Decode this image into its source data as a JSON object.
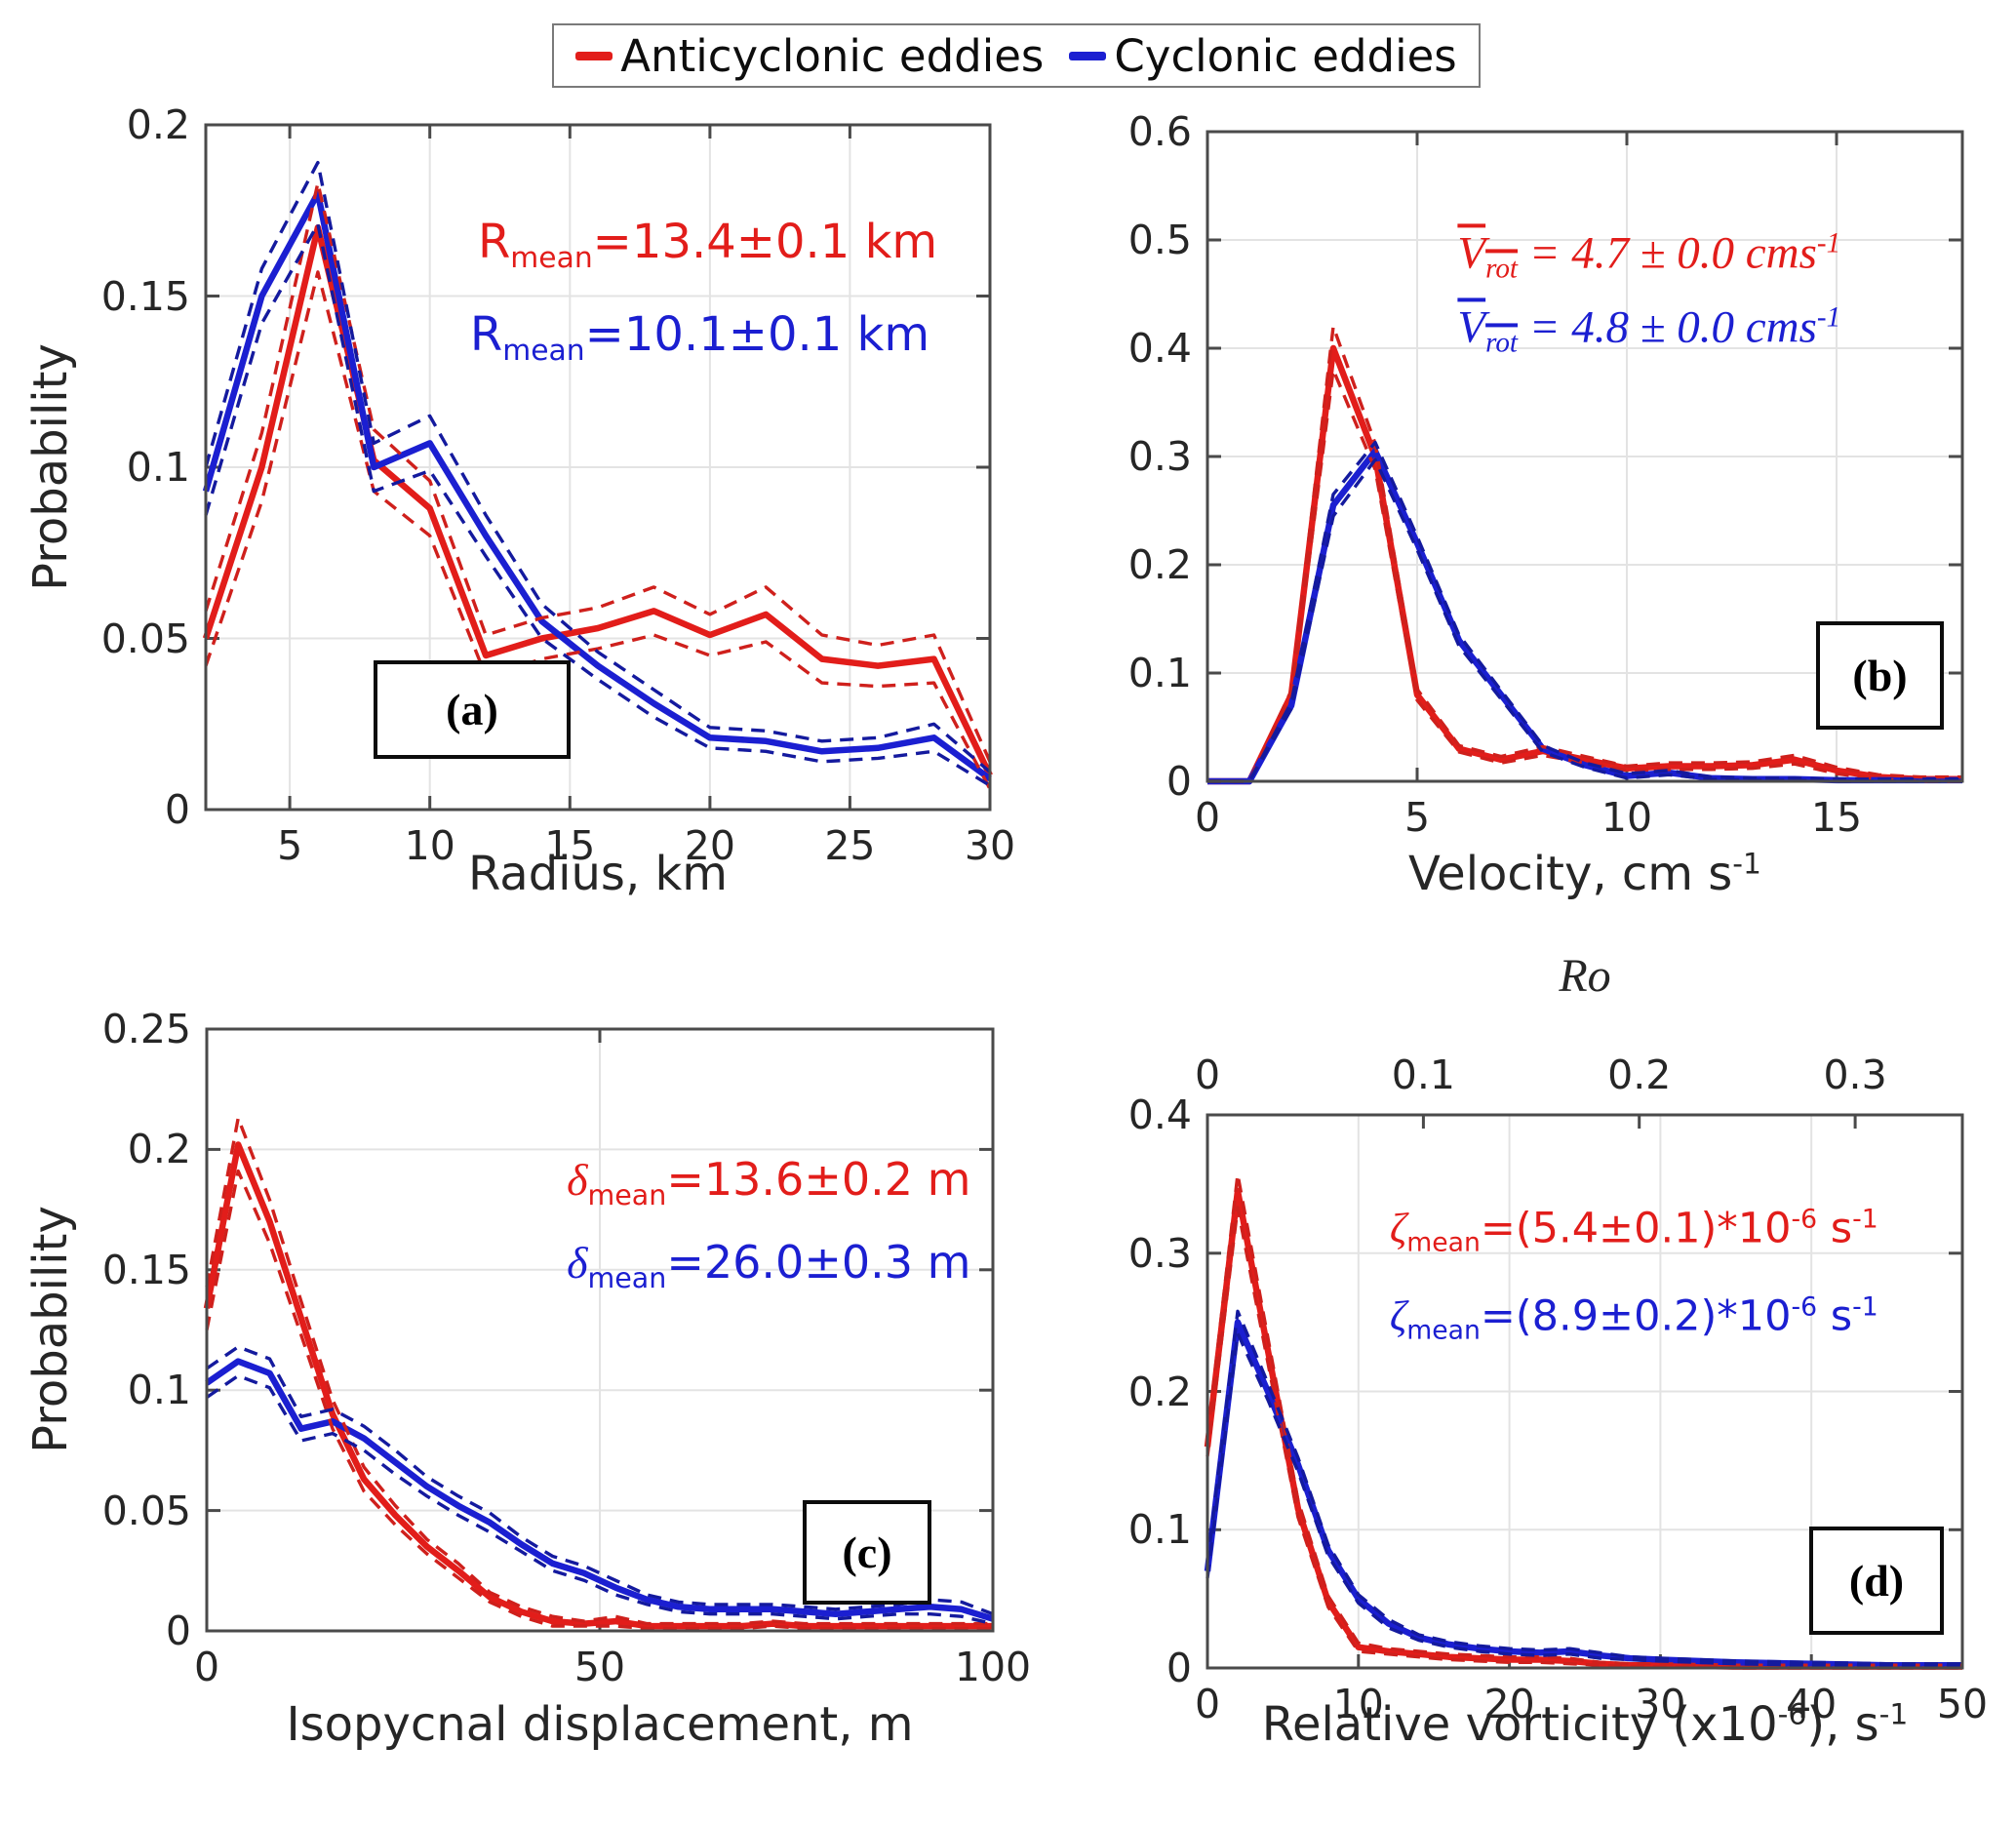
{
  "colors": {
    "red": "#e21d1a",
    "red_dash": "#cf201c",
    "blue": "#1b1fd1",
    "blue_dash": "#141a9e",
    "grid": "#e3e3e3",
    "axis": "#4a4a4a",
    "text": "#262626"
  },
  "legend": {
    "items": [
      {
        "label": "Anticyclonic eddies",
        "color": "#e21d1a"
      },
      {
        "label": "Cyclonic eddies",
        "color": "#1b1fd1"
      }
    ]
  },
  "chart_data": [
    {
      "id": "a",
      "panel_label": "(a)",
      "type": "line",
      "ylabel": "Probability",
      "xlabel_parts": [
        {
          "t": "Radius, km"
        }
      ],
      "xlim": [
        2,
        30
      ],
      "ylim": [
        0,
        0.2
      ],
      "xticks": [
        5,
        10,
        15,
        20,
        25,
        30
      ],
      "xtick_labels": [
        "5",
        "10",
        "15",
        "20",
        "25",
        "30"
      ],
      "yticks": [
        0,
        0.05,
        0.1,
        0.15,
        0.2
      ],
      "ytick_labels": [
        "0",
        "0.05",
        "0.1",
        "0.15",
        "0.2"
      ],
      "x": [
        2,
        4,
        6,
        8,
        10,
        12,
        14,
        16,
        18,
        20,
        22,
        24,
        26,
        28,
        30
      ],
      "series": [
        {
          "name": "Anticyclonic eddies",
          "color_key": "red",
          "values": [
            0.05,
            0.1,
            0.17,
            0.102,
            0.088,
            0.045,
            0.05,
            0.053,
            0.058,
            0.051,
            0.057,
            0.044,
            0.042,
            0.044,
            0.01
          ],
          "ci": [
            0.008,
            0.01,
            0.013,
            0.009,
            0.008,
            0.006,
            0.006,
            0.006,
            0.007,
            0.006,
            0.008,
            0.007,
            0.006,
            0.007,
            0.004
          ]
        },
        {
          "name": "Cyclonic eddies",
          "color_key": "blue",
          "values": [
            0.093,
            0.15,
            0.18,
            0.1,
            0.107,
            0.08,
            0.055,
            0.042,
            0.031,
            0.021,
            0.02,
            0.017,
            0.018,
            0.021,
            0.009
          ],
          "ci": [
            0.007,
            0.008,
            0.009,
            0.007,
            0.008,
            0.006,
            0.005,
            0.004,
            0.004,
            0.003,
            0.003,
            0.003,
            0.003,
            0.004,
            0.002
          ]
        }
      ],
      "annotations": [
        {
          "color": "red",
          "parts": [
            {
              "t": "R"
            },
            {
              "t": "mean",
              "s": "sub"
            },
            {
              "t": "=13.4±0.1 km"
            }
          ]
        },
        {
          "color": "blue",
          "parts": [
            {
              "t": "R"
            },
            {
              "t": "mean",
              "s": "sub"
            },
            {
              "t": "=10.1±0.1 km"
            }
          ]
        }
      ]
    },
    {
      "id": "b",
      "panel_label": "(b)",
      "type": "line",
      "ylabel": "",
      "xlabel_parts": [
        {
          "t": "Velocity, cm s"
        },
        {
          "t": "-1",
          "s": "sup"
        }
      ],
      "xlim": [
        0,
        18
      ],
      "ylim": [
        0,
        0.6
      ],
      "xticks": [
        0,
        5,
        10,
        15
      ],
      "xtick_labels": [
        "0",
        "5",
        "10",
        "15"
      ],
      "yticks": [
        0,
        0.1,
        0.2,
        0.3,
        0.4,
        0.5,
        0.6
      ],
      "ytick_labels": [
        "0",
        "0.1",
        "0.2",
        "0.3",
        "0.4",
        "0.5",
        "0.6"
      ],
      "x": [
        0,
        1,
        2,
        3,
        4,
        5,
        6,
        7,
        8,
        9,
        10,
        11,
        12,
        13,
        14,
        15,
        16,
        17,
        18
      ],
      "series": [
        {
          "name": "Anticyclonic eddies",
          "color_key": "red",
          "values": [
            0,
            0,
            0.08,
            0.4,
            0.3,
            0.08,
            0.03,
            0.02,
            0.028,
            0.02,
            0.012,
            0.014,
            0.014,
            0.015,
            0.02,
            0.01,
            0.004,
            0.002,
            0.002
          ],
          "ci": [
            0,
            0,
            0.004,
            0.02,
            0.012,
            0.005,
            0.003,
            0.003,
            0.004,
            0.003,
            0.002,
            0.003,
            0.003,
            0.003,
            0.004,
            0.003,
            0.002,
            0.002,
            0.002
          ]
        },
        {
          "name": "Cyclonic eddies",
          "color_key": "blue",
          "values": [
            0,
            0,
            0.07,
            0.255,
            0.305,
            0.22,
            0.13,
            0.08,
            0.03,
            0.015,
            0.005,
            0.008,
            0.003,
            0.002,
            0.002,
            0.001,
            0.001,
            0.001,
            0.001
          ],
          "ci": [
            0,
            0,
            0.003,
            0.01,
            0.008,
            0.006,
            0.005,
            0.004,
            0.003,
            0.002,
            0.002,
            0.002,
            0.001,
            0.001,
            0.001,
            0.001,
            0.001,
            0.001,
            0.001
          ]
        }
      ],
      "annotations": [
        {
          "color": "red",
          "parts": [
            {
              "s": "math ov",
              "parts": [
                {
                  "t": "V"
                },
                {
                  "t": "rot",
                  "s": "sub"
                }
              ]
            },
            {
              "t": " = 4.7 ± 0.0 ",
              "s": "math"
            },
            {
              "t": "cms",
              "s": "math"
            },
            {
              "t": "-1",
              "s": "sup math"
            }
          ]
        },
        {
          "color": "blue",
          "parts": [
            {
              "s": "math ov",
              "parts": [
                {
                  "t": "V"
                },
                {
                  "t": "rot",
                  "s": "sub"
                }
              ]
            },
            {
              "t": " = 4.8 ± 0.0 ",
              "s": "math"
            },
            {
              "t": "cms",
              "s": "math"
            },
            {
              "t": "-1",
              "s": "sup math"
            }
          ]
        }
      ]
    },
    {
      "id": "c",
      "panel_label": "(c)",
      "type": "line",
      "ylabel": "Probability",
      "xlabel_parts": [
        {
          "t": "Isopycnal displacement, m"
        }
      ],
      "xlim": [
        0,
        100
      ],
      "ylim": [
        0,
        0.25
      ],
      "xticks": [
        0,
        50,
        100
      ],
      "xtick_labels": [
        "0",
        "50",
        "100"
      ],
      "yticks": [
        0,
        0.05,
        0.1,
        0.15,
        0.2,
        0.25
      ],
      "ytick_labels": [
        "0",
        "0.05",
        "0.1",
        "0.15",
        "0.2",
        "0.25"
      ],
      "x": [
        0,
        4,
        8,
        12,
        16,
        20,
        24,
        28,
        32,
        36,
        40,
        44,
        48,
        52,
        56,
        60,
        64,
        68,
        72,
        76,
        80,
        84,
        88,
        92,
        96,
        100
      ],
      "series": [
        {
          "name": "Anticyclonic eddies",
          "color_key": "red",
          "values": [
            0.134,
            0.202,
            0.17,
            0.13,
            0.09,
            0.063,
            0.048,
            0.035,
            0.025,
            0.014,
            0.008,
            0.004,
            0.003,
            0.004,
            0.002,
            0.002,
            0.002,
            0.002,
            0.003,
            0.002,
            0.002,
            0.002,
            0.002,
            0.002,
            0.002,
            0.002
          ],
          "ci": [
            0.009,
            0.011,
            0.009,
            0.007,
            0.006,
            0.005,
            0.004,
            0.003,
            0.003,
            0.002,
            0.002,
            0.002,
            0.001,
            0.002,
            0.001,
            0.001,
            0.001,
            0.001,
            0.001,
            0.001,
            0.001,
            0.001,
            0.001,
            0.001,
            0.001,
            0.001
          ]
        },
        {
          "name": "Cyclonic eddies",
          "color_key": "blue",
          "values": [
            0.103,
            0.112,
            0.107,
            0.084,
            0.087,
            0.08,
            0.07,
            0.06,
            0.052,
            0.045,
            0.036,
            0.028,
            0.024,
            0.018,
            0.013,
            0.01,
            0.009,
            0.009,
            0.009,
            0.008,
            0.007,
            0.008,
            0.009,
            0.01,
            0.009,
            0.005
          ],
          "ci": [
            0.006,
            0.006,
            0.006,
            0.005,
            0.005,
            0.005,
            0.005,
            0.004,
            0.004,
            0.004,
            0.003,
            0.003,
            0.003,
            0.003,
            0.002,
            0.002,
            0.002,
            0.002,
            0.002,
            0.002,
            0.002,
            0.002,
            0.002,
            0.003,
            0.003,
            0.002
          ]
        }
      ],
      "annotations": [
        {
          "color": "red",
          "parts": [
            {
              "t": "δ",
              "s": "math"
            },
            {
              "t": "mean",
              "s": "sub"
            },
            {
              "t": "=13.6±0.2 m"
            }
          ]
        },
        {
          "color": "blue",
          "parts": [
            {
              "t": "δ",
              "s": "math"
            },
            {
              "t": "mean",
              "s": "sub"
            },
            {
              "t": "=26.0±0.3 m"
            }
          ]
        }
      ]
    },
    {
      "id": "d",
      "panel_label": "(d)",
      "type": "line",
      "ylabel": "",
      "xlabel_parts": [
        {
          "t": "Relative vorticity (x10"
        },
        {
          "t": "-6",
          "s": "sup"
        },
        {
          "t": "), s"
        },
        {
          "t": "-1",
          "s": "sup"
        }
      ],
      "top_axis": {
        "label": "Ro",
        "tick_pos": [
          0,
          14.3,
          28.6,
          42.9
        ],
        "tick_labels": [
          "0",
          "0.1",
          "0.2",
          "0.3"
        ]
      },
      "xlim": [
        0,
        50
      ],
      "ylim": [
        0,
        0.4
      ],
      "xticks": [
        10,
        20,
        30,
        40,
        50
      ],
      "xtick_labels": [
        "10",
        "20",
        "30",
        "40",
        "50"
      ],
      "xticks_extra_label_at_zero": "0",
      "yticks": [
        0,
        0.1,
        0.2,
        0.3,
        0.4
      ],
      "ytick_labels": [
        "0",
        "0.1",
        "0.2",
        "0.3",
        "0.4"
      ],
      "x": [
        0,
        2,
        4,
        6,
        8,
        10,
        12,
        14,
        16,
        18,
        20,
        22,
        24,
        26,
        28,
        30,
        35,
        40,
        45,
        50
      ],
      "series": [
        {
          "name": "Anticyclonic eddies",
          "color_key": "red",
          "values": [
            0.16,
            0.345,
            0.23,
            0.115,
            0.048,
            0.015,
            0.012,
            0.01,
            0.008,
            0.007,
            0.006,
            0.006,
            0.005,
            0.003,
            0.002,
            0.002,
            0.001,
            0.001,
            0.001,
            0.001
          ],
          "ci": [
            0.007,
            0.012,
            0.009,
            0.006,
            0.004,
            0.003,
            0.002,
            0.002,
            0.002,
            0.002,
            0.002,
            0.002,
            0.002,
            0.001,
            0.001,
            0.001,
            0.001,
            0.001,
            0.001,
            0.001
          ]
        },
        {
          "name": "Cyclonic eddies",
          "color_key": "blue",
          "values": [
            0.07,
            0.25,
            0.2,
            0.147,
            0.085,
            0.05,
            0.032,
            0.022,
            0.017,
            0.014,
            0.012,
            0.011,
            0.012,
            0.009,
            0.007,
            0.006,
            0.004,
            0.003,
            0.002,
            0.002
          ],
          "ci": [
            0.005,
            0.008,
            0.006,
            0.005,
            0.004,
            0.003,
            0.003,
            0.002,
            0.002,
            0.002,
            0.002,
            0.002,
            0.002,
            0.002,
            0.001,
            0.001,
            0.001,
            0.001,
            0.001,
            0.001
          ]
        }
      ],
      "annotations": [
        {
          "color": "red",
          "parts": [
            {
              "t": "ζ",
              "s": "math"
            },
            {
              "t": "mean",
              "s": "sub"
            },
            {
              "t": "=(5.4±0.1)*10"
            },
            {
              "t": "-6",
              "s": "sup"
            },
            {
              "t": " s",
              "s": ""
            },
            {
              "t": "-1",
              "s": "sup"
            }
          ]
        },
        {
          "color": "blue",
          "parts": [
            {
              "t": "ζ",
              "s": "math"
            },
            {
              "t": "mean",
              "s": "sub"
            },
            {
              "t": "=(8.9±0.2)*10"
            },
            {
              "t": "-6",
              "s": "sup"
            },
            {
              "t": " s",
              "s": ""
            },
            {
              "t": "-1",
              "s": "sup"
            }
          ]
        }
      ]
    }
  ]
}
